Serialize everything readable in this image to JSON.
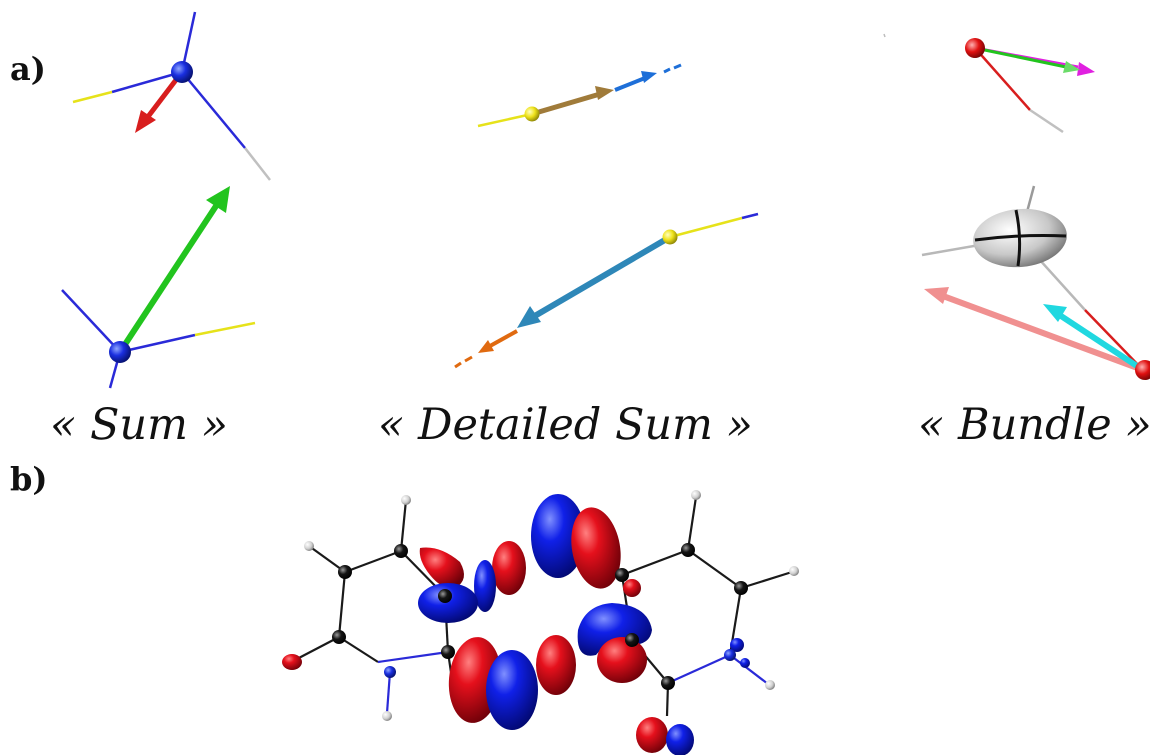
{
  "panel_a": {
    "label": "a)",
    "captions": {
      "sum": "« Sum »",
      "detailed_sum": "« Detailed Sum »",
      "bundle": "« Bundle »"
    }
  },
  "panel_b": {
    "label": "b)"
  },
  "colors": {
    "atom_blue": "#1f1fd0",
    "atom_yellow": "#e6e21a",
    "atom_red": "#e01010",
    "arrow_red": "#d81e1e",
    "arrow_green": "#22c41e",
    "arrow_brown": "#a07b3a",
    "arrow_blue": "#1e6fd8",
    "arrow_steel": "#2e87b8",
    "arrow_orange": "#e06a10",
    "arrow_magenta": "#e020e0",
    "arrow_cyan": "#20d8e0",
    "arrow_pink": "#f09090",
    "lobe_red": "#e00d1b",
    "lobe_blue": "#0d1ae0",
    "bond": "#1a1a1a",
    "carbon": "#111111",
    "hydrogen": "#d8d8d8"
  }
}
